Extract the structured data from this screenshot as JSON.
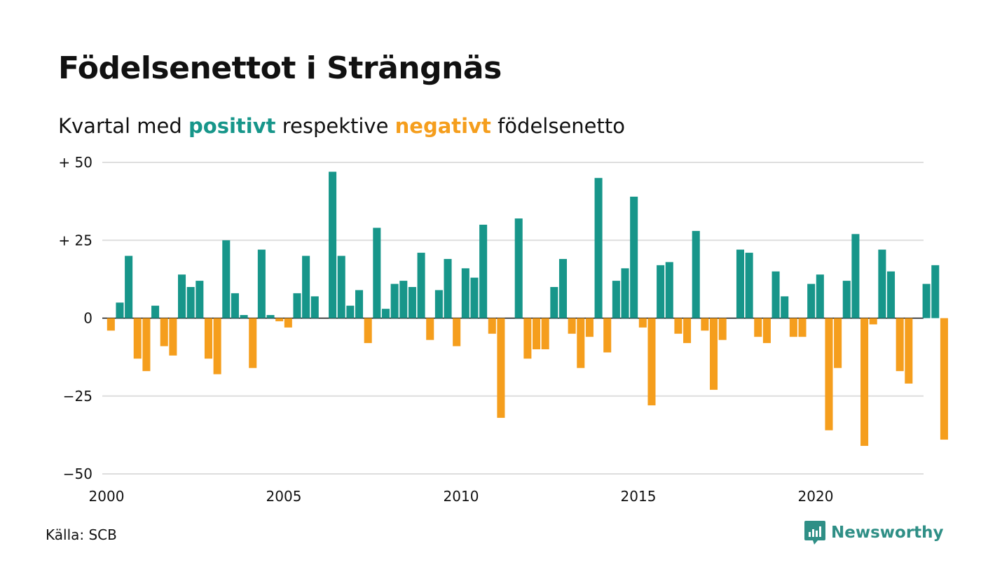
{
  "title": "Födelsenettot i Strängnäs",
  "subtitle": {
    "prefix": "Kvartal med",
    "positive_word": "positivt",
    "middle": "respektive",
    "negative_word": "negativt",
    "suffix": "födelsenetto"
  },
  "colors": {
    "positive": "#17968a",
    "negative": "#f59e1d",
    "grid": "#dedede",
    "text": "#111111"
  },
  "source": "Källa: SCB",
  "logo": {
    "text": "Newsworthy",
    "icon": "newsworthy-bar-chart-icon",
    "color": "#2f8f86"
  },
  "chart_data": {
    "type": "bar",
    "x_start": 2000,
    "x_end": 2023,
    "periods_per_year": 4,
    "ylim": [
      -50,
      50
    ],
    "y_ticks": [
      {
        "value": 50,
        "label": "+ 50"
      },
      {
        "value": 25,
        "label": "+ 25"
      },
      {
        "value": 0,
        "label": "0"
      },
      {
        "value": -25,
        "label": "−25"
      },
      {
        "value": -50,
        "label": "−50"
      }
    ],
    "x_ticks": [
      {
        "value": 2000,
        "label": "2000"
      },
      {
        "value": 2005,
        "label": "2005"
      },
      {
        "value": 2010,
        "label": "2010"
      },
      {
        "value": 2015,
        "label": "2015"
      },
      {
        "value": 2020,
        "label": "2020"
      }
    ],
    "x": [
      "2000K1",
      "2000K2",
      "2000K3",
      "2000K4",
      "2001K1",
      "2001K2",
      "2001K3",
      "2001K4",
      "2002K1",
      "2002K2",
      "2002K3",
      "2002K4",
      "2003K1",
      "2003K2",
      "2003K3",
      "2003K4",
      "2004K1",
      "2004K2",
      "2004K3",
      "2004K4",
      "2005K1",
      "2005K2",
      "2005K3",
      "2005K4",
      "2006K1",
      "2006K2",
      "2006K3",
      "2006K4",
      "2007K1",
      "2007K2",
      "2007K3",
      "2007K4",
      "2008K1",
      "2008K2",
      "2008K3",
      "2008K4",
      "2009K1",
      "2009K2",
      "2009K3",
      "2009K4",
      "2010K1",
      "2010K2",
      "2010K3",
      "2010K4",
      "2011K1",
      "2011K2",
      "2011K3",
      "2011K4",
      "2012K1",
      "2012K2",
      "2012K3",
      "2012K4",
      "2013K1",
      "2013K2",
      "2013K3",
      "2013K4",
      "2014K1",
      "2014K2",
      "2014K3",
      "2014K4",
      "2015K1",
      "2015K2",
      "2015K3",
      "2015K4",
      "2016K1",
      "2016K2",
      "2016K3",
      "2016K4",
      "2017K1",
      "2017K2",
      "2017K3",
      "2017K4",
      "2018K1",
      "2018K2",
      "2018K3",
      "2018K4",
      "2019K1",
      "2019K2",
      "2019K3",
      "2019K4",
      "2020K1",
      "2020K2",
      "2020K3",
      "2020K4",
      "2021K1",
      "2021K2",
      "2021K3",
      "2021K4",
      "2022K1",
      "2022K2",
      "2022K3",
      "2022K4",
      "2023K1",
      "2023K2",
      "2023K3",
      "2023K4"
    ],
    "values": [
      -4,
      5,
      20,
      -13,
      -17,
      4,
      -9,
      -12,
      14,
      10,
      12,
      -13,
      -18,
      25,
      8,
      1,
      -16,
      22,
      1,
      -1,
      -3,
      8,
      20,
      7,
      0,
      47,
      20,
      4,
      9,
      -8,
      29,
      3,
      11,
      12,
      10,
      21,
      -7,
      9,
      19,
      -9,
      16,
      13,
      30,
      -5,
      -32,
      0,
      32,
      -13,
      -10,
      -10,
      10,
      19,
      -5,
      -16,
      -6,
      45,
      -11,
      12,
      16,
      39,
      -3,
      -28,
      17,
      18,
      -5,
      -8,
      28,
      -4,
      -23,
      -7,
      0,
      22,
      21,
      -6,
      -8,
      15,
      7,
      -6,
      -6,
      11,
      14,
      -36,
      -16,
      12,
      27,
      -41,
      -2,
      22,
      15,
      -17,
      -21,
      0,
      11,
      17,
      -39,
      0
    ]
  }
}
